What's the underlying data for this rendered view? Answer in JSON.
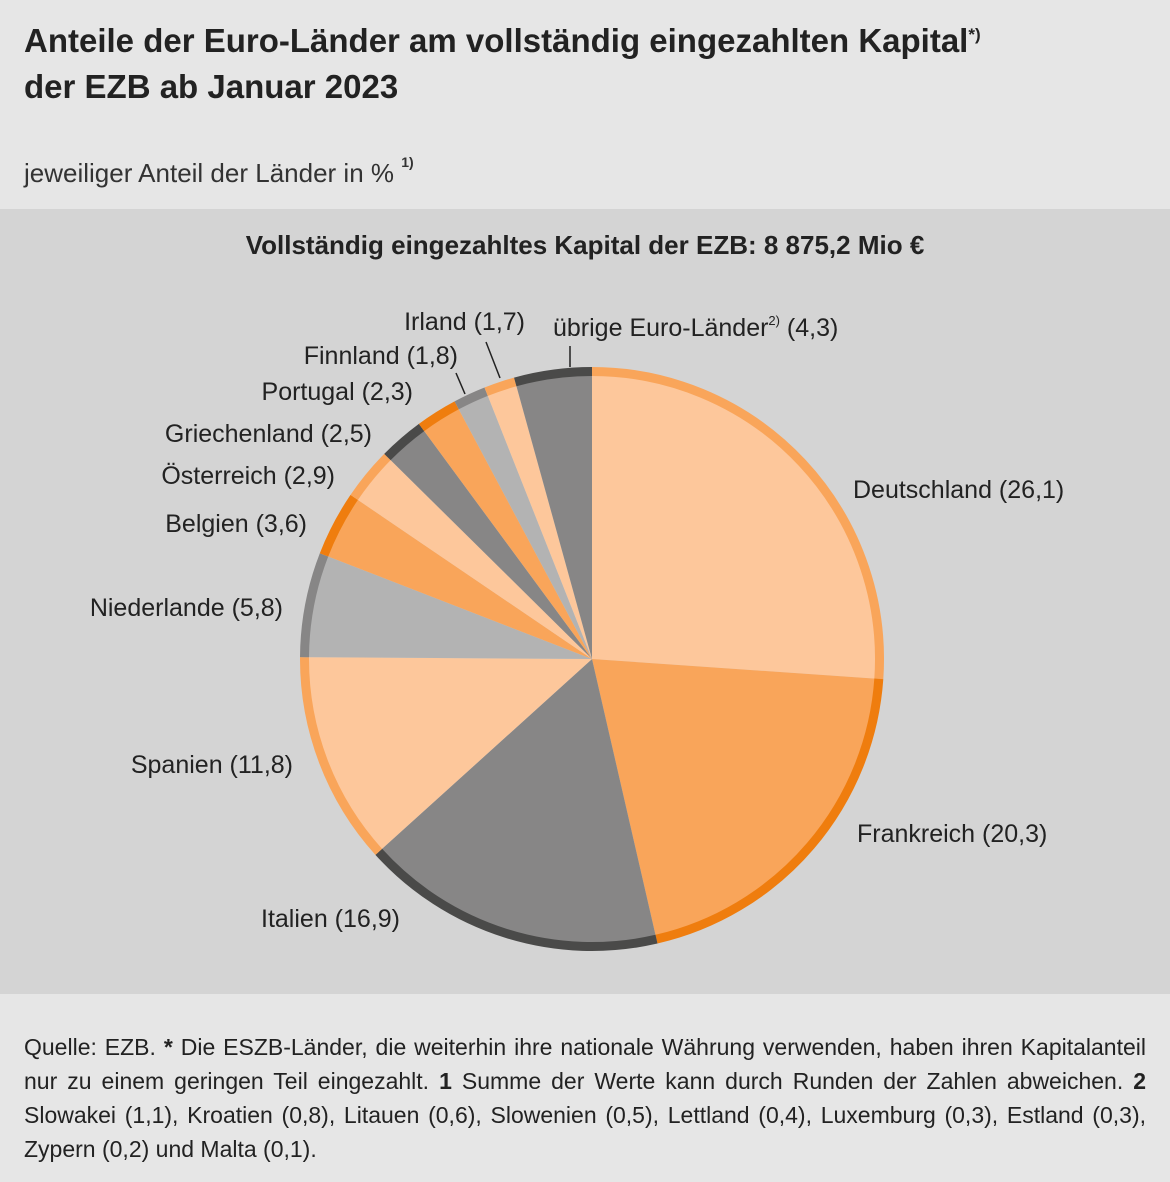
{
  "header": {
    "title_line1": "Anteile der Euro-Länder am vollständig eingezahlten Kapital",
    "title_footnote": "*)",
    "title_line2": "der EZB ab Januar 2023",
    "subtitle": "jeweiliger Anteil der Länder in %",
    "subtitle_footnote": "1)"
  },
  "chart_data": {
    "type": "pie",
    "title": "Vollständig eingezahltes Kapital der EZB: 8 875,2 Mio €",
    "slices": [
      {
        "label": "Deutschland",
        "value": 26.1,
        "value_text": "(26,1)",
        "fill": "#fdc79b",
        "edge": "#f9a55a"
      },
      {
        "label": "Frankreich",
        "value": 20.3,
        "value_text": "(20,3)",
        "fill": "#f9a55a",
        "edge": "#ef7d0e"
      },
      {
        "label": "Italien",
        "value": 16.9,
        "value_text": "(16,9)",
        "fill": "#878686",
        "edge": "#4a4a49"
      },
      {
        "label": "Spanien",
        "value": 11.8,
        "value_text": "(11,8)",
        "fill": "#fdc79b",
        "edge": "#f9a55a"
      },
      {
        "label": "Niederlande",
        "value": 5.8,
        "value_text": "(5,8)",
        "fill": "#b3b3b3",
        "edge": "#878686"
      },
      {
        "label": "Belgien",
        "value": 3.6,
        "value_text": "(3,6)",
        "fill": "#f9a55a",
        "edge": "#ef7d0e"
      },
      {
        "label": "Österreich",
        "value": 2.9,
        "value_text": "(2,9)",
        "fill": "#fdc79b",
        "edge": "#f9a55a"
      },
      {
        "label": "Griechenland",
        "value": 2.5,
        "value_text": "(2,5)",
        "fill": "#878686",
        "edge": "#4a4a49"
      },
      {
        "label": "Portugal",
        "value": 2.3,
        "value_text": "(2,3)",
        "fill": "#f9a55a",
        "edge": "#ef7d0e"
      },
      {
        "label": "Finnland",
        "value": 1.8,
        "value_text": "(1,8)",
        "fill": "#b3b3b3",
        "edge": "#878686"
      },
      {
        "label": "Irland",
        "value": 1.7,
        "value_text": "(1,7)",
        "fill": "#fdc79b",
        "edge": "#f9a55a"
      },
      {
        "label": "übrige Euro-Länder",
        "label_footnote": "2)",
        "value": 4.3,
        "value_text": "(4,3)",
        "fill": "#878686",
        "edge": "#4a4a49"
      }
    ]
  },
  "footer": {
    "source_label": "Quelle: EZB.",
    "star": "*",
    "star_text": "Die ESZB-Länder, die weiterhin ihre nationale Währung verwenden, haben ihren Kapitalanteil nur zu einem geringen Teil eingezahlt.",
    "note1_num": "1",
    "note1_text": "Summe der Werte kann durch Runden der Zahlen abweichen.",
    "note2_num": "2",
    "note2_text": "Slowakei (1,1), Kroatien (0,8), Litauen (0,6), Slo­wenien (0,5), Lettland (0,4), Luxemburg (0,3), Estland (0,3), Zypern (0,2) und Malta (0,1)."
  }
}
